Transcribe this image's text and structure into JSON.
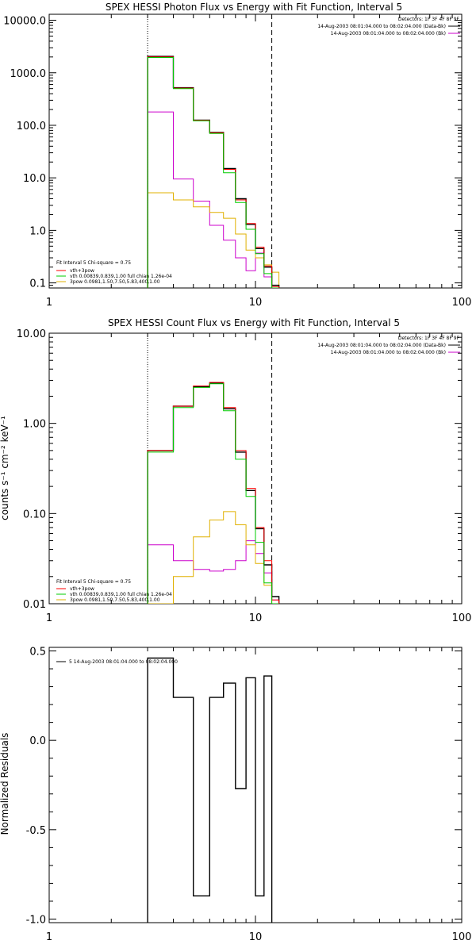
{
  "colors": {
    "background": "#ffffff",
    "axes": "#000000",
    "data": "#000000",
    "fit": "#ff0000",
    "thermal": "#00cc00",
    "power_law": "#e0b000",
    "background_spectrum": "#cc00cc"
  },
  "chart_data": [
    {
      "type": "line",
      "title": "SPEX HESSI Photon Flux vs Energy with Fit Function, Interval 5",
      "xlabel": "",
      "ylabel": "",
      "xscale": "log",
      "yscale": "log",
      "xlim": [
        1,
        100
      ],
      "ylim": [
        0.08,
        13000
      ],
      "x_ticks": [
        {
          "value": 1,
          "label": "1"
        },
        {
          "value": 10,
          "label": "10"
        },
        {
          "value": 100,
          "label": "100"
        }
      ],
      "y_ticks": [
        {
          "value": 0.1,
          "label": "0.1"
        },
        {
          "value": 1,
          "label": "1.0"
        },
        {
          "value": 10,
          "label": "10.0"
        },
        {
          "value": 100,
          "label": "100.0"
        },
        {
          "value": 1000,
          "label": "1000.0"
        },
        {
          "value": 10000,
          "label": "10000.0"
        }
      ],
      "vlines": [
        {
          "x": 3.0,
          "style": "dotted"
        },
        {
          "x": 12.0,
          "style": "dashed"
        }
      ],
      "header_text": [
        "Detectors: 1F 3F 4F 8F 9F",
        "14-Aug-2003 08:01:04.000 to 08:02:04.000 (Data-Bk)",
        "14-Aug-2003 08:01:04.000 to 08:02:04.000 (Bk)"
      ],
      "legend": {
        "placement": "bottom-left",
        "header": "Fit Interval 5   Chi-square = 0.75",
        "entries": [
          "vth+3pow",
          "vth 0.00839,0.839,1.00  full chian 1.26e-04",
          "3pow 0.0981,1.50,7.50,5.83,400,1.00"
        ]
      },
      "x_edges": [
        3,
        4,
        5,
        6,
        7,
        8,
        9,
        10,
        11,
        12,
        13
      ],
      "series": [
        {
          "role": "data",
          "values": [
            2050,
            520,
            125,
            73,
            15,
            4,
            1.3,
            0.45,
            0.2,
            0.09
          ]
        },
        {
          "role": "fit",
          "values": [
            2000,
            510,
            124,
            72,
            14.5,
            3.8,
            1.35,
            0.48,
            0.21,
            0.085
          ]
        },
        {
          "role": "thermal",
          "values": [
            1950,
            500,
            122,
            70,
            12.5,
            3.4,
            1.05,
            0.36,
            0.15,
            0.06
          ]
        },
        {
          "role": "power_law",
          "values": [
            5.2,
            3.8,
            2.8,
            2.2,
            1.7,
            0.85,
            0.42,
            0.3,
            0.22,
            0.16
          ]
        },
        {
          "role": "background_spectrum",
          "values": [
            180,
            9.5,
            3.6,
            1.25,
            0.65,
            0.3,
            0.17,
            0.37,
            0.13,
            0.08
          ]
        }
      ]
    },
    {
      "type": "line",
      "title": "SPEX HESSI Count Flux vs Energy with Fit Function, Interval 5",
      "xlabel": "",
      "ylabel": "counts s⁻¹ cm⁻² keV⁻¹",
      "xscale": "log",
      "yscale": "log",
      "xlim": [
        1,
        100
      ],
      "ylim": [
        0.01,
        10
      ],
      "x_ticks": [
        {
          "value": 1,
          "label": "1"
        },
        {
          "value": 10,
          "label": "10"
        },
        {
          "value": 100,
          "label": "100"
        }
      ],
      "y_ticks": [
        {
          "value": 0.01,
          "label": "0.01"
        },
        {
          "value": 0.1,
          "label": "0.10"
        },
        {
          "value": 1,
          "label": "1.00"
        },
        {
          "value": 10,
          "label": "10.00"
        }
      ],
      "vlines": [
        {
          "x": 3.0,
          "style": "dotted"
        },
        {
          "x": 12.0,
          "style": "dashed"
        }
      ],
      "header_text": [
        "Detectors: 1F 3F 4F 8F 9F",
        "14-Aug-2003 08:01:04.000 to 08:02:04.000 (Data-Bk)",
        "14-Aug-2003 08:01:04.000 to 08:02:04.000 (Bk)"
      ],
      "legend": {
        "placement": "bottom-left",
        "header": "Fit Interval 5   Chi-square = 0.75",
        "entries": [
          "vth+3pow",
          "vth 0.00839,0.839,1.00  full chian 1.26e-04",
          "3pow 0.0981,1.50,7.50,5.83,400,1.00"
        ]
      },
      "x_edges": [
        3,
        4,
        5,
        6,
        7,
        8,
        9,
        10,
        11,
        12,
        13
      ],
      "series": [
        {
          "role": "data",
          "values": [
            0.5,
            1.55,
            2.55,
            2.8,
            1.45,
            0.48,
            0.18,
            0.068,
            0.027,
            0.012
          ]
        },
        {
          "role": "fit",
          "values": [
            0.5,
            1.55,
            2.6,
            2.85,
            1.5,
            0.5,
            0.19,
            0.07,
            0.03,
            0.011
          ]
        },
        {
          "role": "thermal",
          "values": [
            0.48,
            1.5,
            2.5,
            2.75,
            1.38,
            0.4,
            0.155,
            0.048,
            0.017,
            0.0095
          ]
        },
        {
          "role": "power_law",
          "values": [
            0.0095,
            0.02,
            0.055,
            0.085,
            0.105,
            0.075,
            0.045,
            0.028,
            0.016,
            0.009
          ]
        },
        {
          "role": "background_spectrum",
          "values": [
            0.045,
            0.03,
            0.024,
            0.023,
            0.024,
            0.03,
            0.05,
            0.036,
            0.022,
            0.011
          ]
        }
      ]
    },
    {
      "type": "line",
      "title": "",
      "xlabel": "",
      "ylabel": "Normalized Residuals",
      "xscale": "log",
      "yscale": "linear",
      "xlim": [
        1,
        100
      ],
      "ylim": [
        -1.02,
        0.52
      ],
      "x_ticks": [
        {
          "value": 1,
          "label": "1"
        },
        {
          "value": 10,
          "label": "10"
        },
        {
          "value": 100,
          "label": "100"
        }
      ],
      "y_ticks": [
        {
          "value": -1.0,
          "label": "-1.0"
        },
        {
          "value": -0.5,
          "label": "-0.5"
        },
        {
          "value": 0.0,
          "label": "0.0"
        },
        {
          "value": 0.5,
          "label": "0.5"
        }
      ],
      "legend": {
        "placement": "top-left",
        "entries": [
          "5  14-Aug-2003 08:01:04.000 to 08:02:04.000"
        ]
      },
      "x_edges": [
        3,
        4,
        5,
        6,
        7,
        8,
        9,
        10,
        11,
        12
      ],
      "series": [
        {
          "role": "data",
          "values": [
            0.46,
            0.24,
            -0.87,
            0.24,
            0.32,
            -0.27,
            0.35,
            -0.87,
            0.36
          ]
        }
      ]
    }
  ]
}
